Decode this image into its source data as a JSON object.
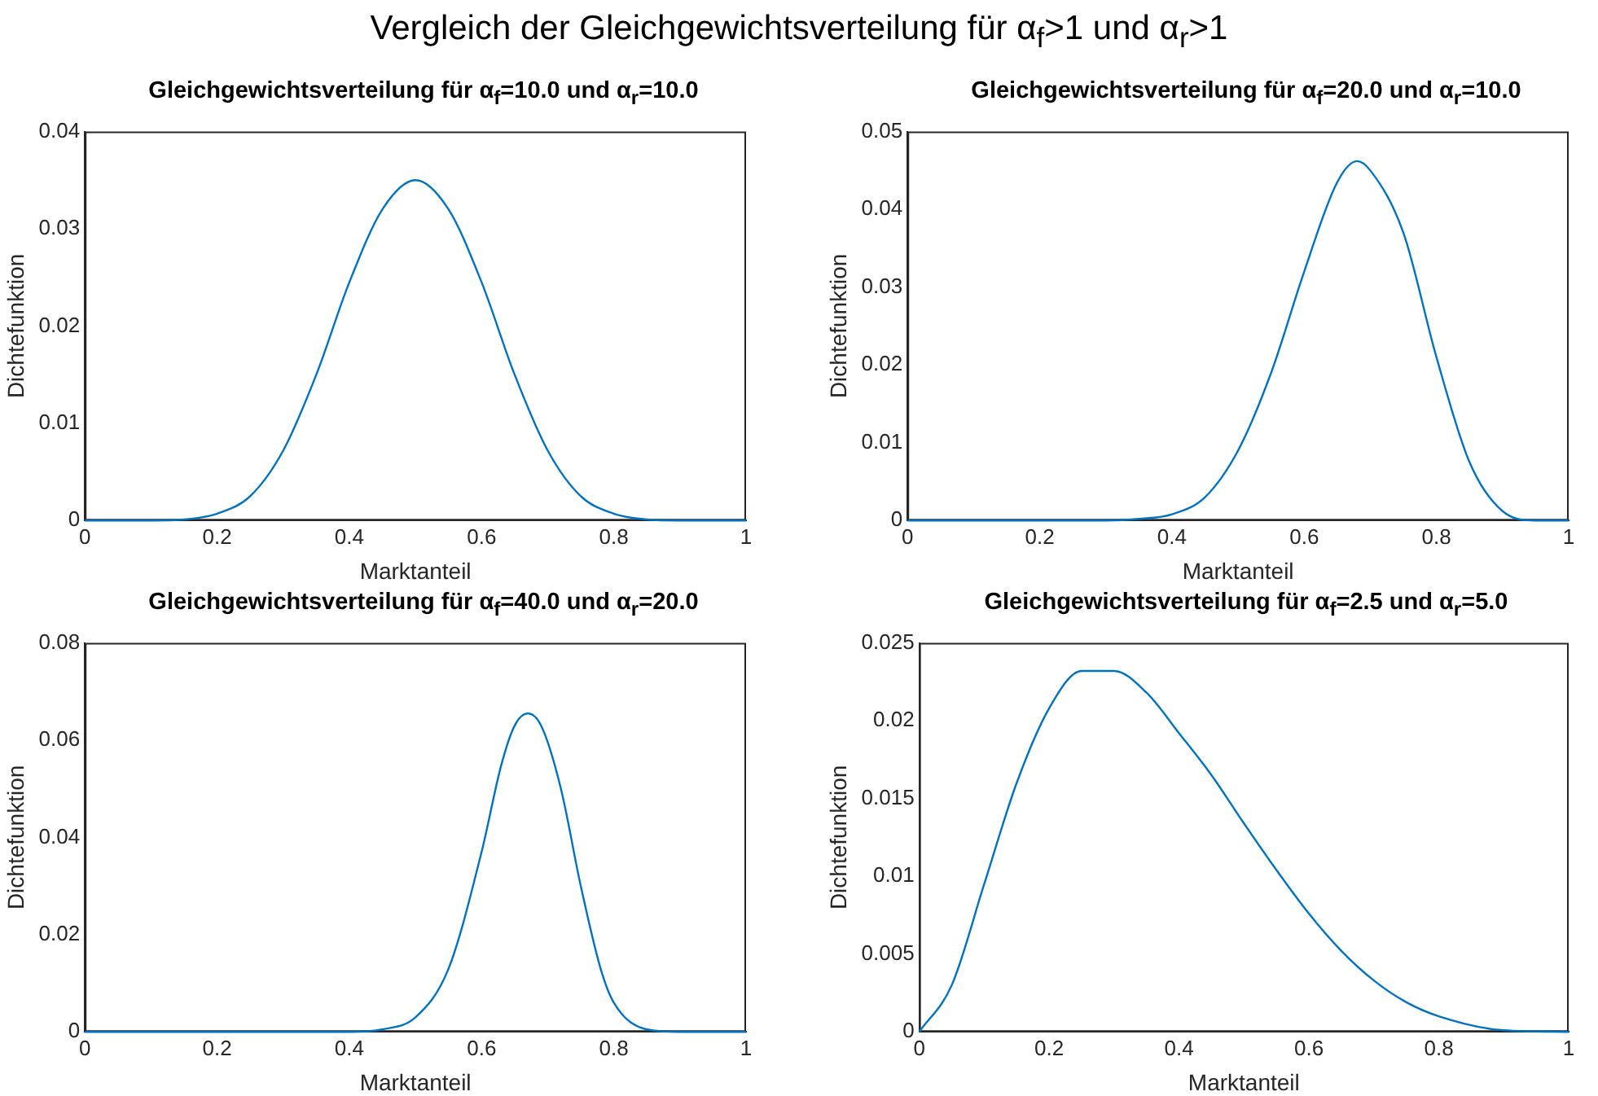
{
  "chart_data": [
    {
      "type": "other",
      "title": "Vergleich der Gleichgewichtsverteilung für α$_{f}$>1 und α$_{r}$>1"
    },
    {
      "type": "line",
      "title": "Gleichgewichtsverteilung für α$_{f}$=10.0 und α$_{r}$=10.0",
      "xlabel": "Marktanteil",
      "ylabel": "Dichtefunktion",
      "xlim": [
        0,
        1
      ],
      "xticks": [
        0,
        0.2,
        0.4,
        0.6,
        0.8,
        1
      ],
      "ylim": [
        0,
        0.04
      ],
      "yticks": [
        0,
        0.01,
        0.02,
        0.03,
        0.04
      ],
      "grid": false,
      "legend": false,
      "marker": "none",
      "line_style": "solid",
      "series": [
        {
          "color": "#0072bd",
          "x": [
            0,
            0.1,
            0.15,
            0.2,
            0.25,
            0.3,
            0.35,
            0.4,
            0.45,
            0.5,
            0.55,
            0.6,
            0.65,
            0.7,
            0.75,
            0.8,
            0.85,
            0.9,
            1
          ],
          "values": [
            0,
            0,
            0.0001,
            0.0007,
            0.0025,
            0.0072,
            0.015,
            0.0245,
            0.032,
            0.035,
            0.032,
            0.0245,
            0.015,
            0.0072,
            0.0025,
            0.0007,
            0.0001,
            0,
            0
          ]
        }
      ]
    },
    {
      "type": "line",
      "title": "Gleichgewichtsverteilung für α$_{f}$=20.0 und α$_{r}$=10.0",
      "xlabel": "Marktanteil",
      "ylabel": "Dichtefunktion",
      "xlim": [
        0,
        1
      ],
      "xticks": [
        0,
        0.2,
        0.4,
        0.6,
        0.8,
        1
      ],
      "ylim": [
        0,
        0.05
      ],
      "yticks": [
        0,
        0.01,
        0.02,
        0.03,
        0.04,
        0.05
      ],
      "grid": false,
      "legend": false,
      "marker": "none",
      "line_style": "solid",
      "series": [
        {
          "color": "#0072bd",
          "x": [
            0,
            0.3,
            0.35,
            0.4,
            0.45,
            0.5,
            0.55,
            0.6,
            0.65,
            0.68,
            0.7,
            0.75,
            0.8,
            0.85,
            0.9,
            0.95,
            1
          ],
          "values": [
            0,
            0,
            0.0002,
            0.0008,
            0.003,
            0.009,
            0.019,
            0.032,
            0.0435,
            0.0462,
            0.045,
            0.037,
            0.021,
            0.0075,
            0.0012,
            0,
            0
          ]
        }
      ]
    },
    {
      "type": "line",
      "title": "Gleichgewichtsverteilung für α$_{f}$=40.0 und α$_{r}$=20.0",
      "xlabel": "Marktanteil",
      "ylabel": "Dichtefunktion",
      "xlim": [
        0,
        1
      ],
      "xticks": [
        0,
        0.2,
        0.4,
        0.6,
        0.8,
        1
      ],
      "ylim": [
        0,
        0.08
      ],
      "yticks": [
        0,
        0.02,
        0.04,
        0.06,
        0.08
      ],
      "grid": false,
      "legend": false,
      "marker": "none",
      "line_style": "solid",
      "series": [
        {
          "color": "#0072bd",
          "x": [
            0,
            0.4,
            0.45,
            0.5,
            0.55,
            0.6,
            0.63,
            0.65,
            0.67,
            0.69,
            0.72,
            0.75,
            0.78,
            0.8,
            0.85,
            0.9,
            1
          ],
          "values": [
            0,
            0,
            0.0005,
            0.003,
            0.013,
            0.037,
            0.055,
            0.063,
            0.0655,
            0.063,
            0.05,
            0.03,
            0.013,
            0.006,
            0.0005,
            0,
            0
          ]
        }
      ]
    },
    {
      "type": "line",
      "title": "Gleichgewichtsverteilung für α$_{f}$=2.5 und α$_{r}$=5.0",
      "xlabel": "Marktanteil",
      "ylabel": "Dichtefunktion",
      "xlim": [
        0,
        1
      ],
      "xticks": [
        0,
        0.2,
        0.4,
        0.6,
        0.8,
        1
      ],
      "ylim": [
        0,
        0.025
      ],
      "yticks": [
        0,
        0.005,
        0.01,
        0.015,
        0.02,
        0.025
      ],
      "grid": false,
      "legend": false,
      "marker": "none",
      "line_style": "solid",
      "series": [
        {
          "color": "#0072bd",
          "x": [
            0,
            0.05,
            0.1,
            0.15,
            0.2,
            0.25,
            0.3,
            0.35,
            0.4,
            0.45,
            0.5,
            0.55,
            0.6,
            0.65,
            0.7,
            0.75,
            0.8,
            0.9,
            1
          ],
          "values": [
            0,
            0.003,
            0.0095,
            0.016,
            0.0208,
            0.0232,
            0.0232,
            0.0218,
            0.0192,
            0.0165,
            0.0134,
            0.0104,
            0.0076,
            0.0052,
            0.0033,
            0.0019,
            0.001,
            0.0001,
            0
          ]
        }
      ]
    }
  ]
}
